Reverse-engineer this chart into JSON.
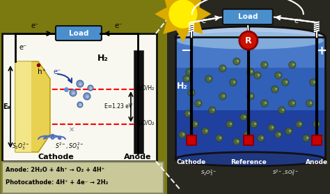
{
  "bg_color": "#2a2a20",
  "outer_bg": "#8a8a20",
  "left_panel_bg": "#f8f8f0",
  "left_panel_border": "#222222",
  "electrode_yellow_light": "#f5e070",
  "electrode_yellow_dark": "#c8a000",
  "electrode_black": "#111111",
  "load_box_color": "#4a8fcc",
  "red_dashed_color": "#ee0000",
  "sun_color": "#ffee00",
  "sun_ray_color": "#ddaa00",
  "cylinder_outer": "#111111",
  "cylinder_water_top": "#b0c8e8",
  "cylinder_water_bot": "#3060a0",
  "cylinder_wall": "#8090a8",
  "bottom_text_bg": "#c8c898",
  "ref_circle_color": "#cc1100",
  "electrode_red": "#cc0000",
  "wire_color_left": "#000000",
  "wire_color_right": "#ffffff",
  "bubble_fill": "#607848",
  "bubble_edge": "#304020",
  "title_left": "Load",
  "title_right": "Load",
  "label_cathode": "Cathode",
  "label_anode": "Anode",
  "label_reference": "Reference",
  "label_H2_right": "H₂",
  "label_H2_left": "H₂",
  "label_H2O_H2": "H₂O/H₂",
  "label_H2O_O2": "H₂O/O₂",
  "label_Eg": "E₉",
  "label_E123": "E=1.23 eV",
  "label_hplus": "h⁺",
  "label_eminus": "e⁻",
  "label_minus": "−",
  "label_plus": "+",
  "label_R": "R",
  "reaction1": "Anode: 2H₂O + 4h⁺ → O₂ + 4H⁺",
  "reaction2": "Photocathode: 4H⁺ + 4e⁻ → 2H₂",
  "figsize": [
    4.74,
    2.78
  ],
  "dpi": 100
}
